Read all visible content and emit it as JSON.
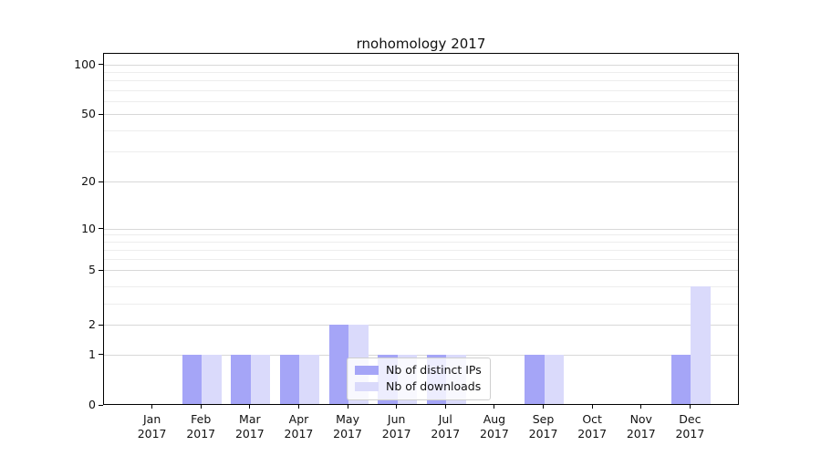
{
  "chart_data": {
    "type": "bar",
    "title": "rnohomology 2017",
    "categories": [
      "Jan 2017",
      "Feb 2017",
      "Mar 2017",
      "Apr 2017",
      "May 2017",
      "Jun 2017",
      "Jul 2017",
      "Aug 2017",
      "Sep 2017",
      "Oct 2017",
      "Nov 2017",
      "Dec 2017"
    ],
    "series": [
      {
        "name": "Nb of distinct IPs",
        "color": "#a5a5f7",
        "values": [
          0,
          1,
          1,
          1,
          2,
          1,
          1,
          0,
          1,
          0,
          0,
          1
        ]
      },
      {
        "name": "Nb of downloads",
        "color": "#dadafb",
        "values": [
          0,
          1,
          1,
          1,
          2,
          1,
          1,
          0,
          1,
          0,
          0,
          4
        ]
      }
    ],
    "yticks": [
      0,
      1,
      2,
      5,
      10,
      20,
      50,
      100
    ],
    "ylim": [
      0,
      116
    ],
    "yscale": "symlog",
    "grid": true,
    "legend_position": "lower center",
    "colors": {
      "distinct_ips": "#a5a5f7",
      "downloads": "#dadafb",
      "grid_major": "#d8d8d8",
      "grid_minor": "#ededed",
      "spine": "#000000"
    }
  }
}
